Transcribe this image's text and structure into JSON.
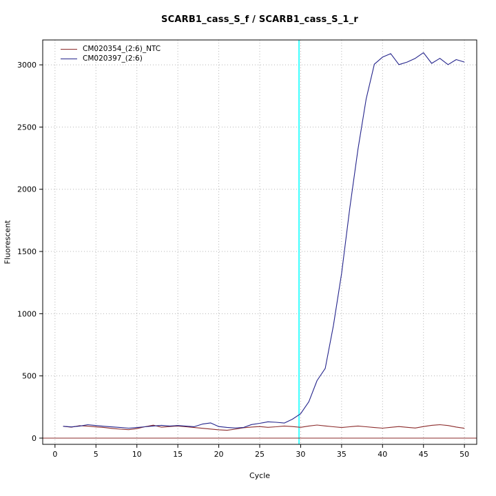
{
  "title": "SCARB1_cass_S_f / SCARB1_cass_S_1_r",
  "chart_data": {
    "type": "line",
    "title": "SCARB1_cass_S_f / SCARB1_cass_S_1_r",
    "xlabel": "Cycle",
    "ylabel": "Fluorescent",
    "xlim": [
      -1.5,
      51.5
    ],
    "ylim": [
      -50,
      3200
    ],
    "xticks": [
      0,
      5,
      10,
      15,
      20,
      25,
      30,
      35,
      40,
      45,
      50
    ],
    "yticks": [
      0,
      500,
      1000,
      1500,
      2000,
      2500,
      3000
    ],
    "grid": true,
    "grid_style": "dotted",
    "legend_position": "top-left",
    "marker_line": {
      "x": 29.8,
      "color": "#00ffff"
    },
    "threshold_line": {
      "y": 0,
      "color": "#8b2a2a"
    },
    "x": [
      1,
      2,
      3,
      4,
      5,
      6,
      7,
      8,
      9,
      10,
      11,
      12,
      13,
      14,
      15,
      16,
      17,
      18,
      19,
      20,
      21,
      22,
      23,
      24,
      25,
      26,
      27,
      28,
      29,
      30,
      31,
      32,
      33,
      34,
      35,
      36,
      37,
      38,
      39,
      40,
      41,
      42,
      43,
      44,
      45,
      46,
      47,
      48,
      49,
      50
    ],
    "series": [
      {
        "name": "CM020354_(2:6)_NTC",
        "color": "#8b2a2a",
        "values": [
          95,
          88,
          100,
          96,
          90,
          85,
          78,
          72,
          68,
          76,
          92,
          104,
          88,
          93,
          97,
          91,
          85,
          79,
          73,
          67,
          63,
          72,
          83,
          89,
          93,
          87,
          91,
          97,
          93,
          87,
          97,
          105,
          98,
          91,
          85,
          91,
          97,
          91,
          85,
          80,
          87,
          93,
          87,
          81,
          93,
          103,
          108,
          101,
          89,
          79
        ]
      },
      {
        "name": "CM020397_(2:6)",
        "color": "#23238b",
        "values": [
          95,
          90,
          96,
          108,
          101,
          95,
          90,
          85,
          80,
          85,
          91,
          97,
          103,
          97,
          101,
          96,
          92,
          113,
          122,
          93,
          86,
          81,
          85,
          109,
          119,
          131,
          127,
          121,
          152,
          196,
          292,
          462,
          560,
          905,
          1325,
          1850,
          2320,
          2725,
          3005,
          3062,
          3090,
          3002,
          3022,
          3052,
          3098,
          3012,
          3052,
          3002,
          3042,
          3022
        ]
      }
    ]
  }
}
